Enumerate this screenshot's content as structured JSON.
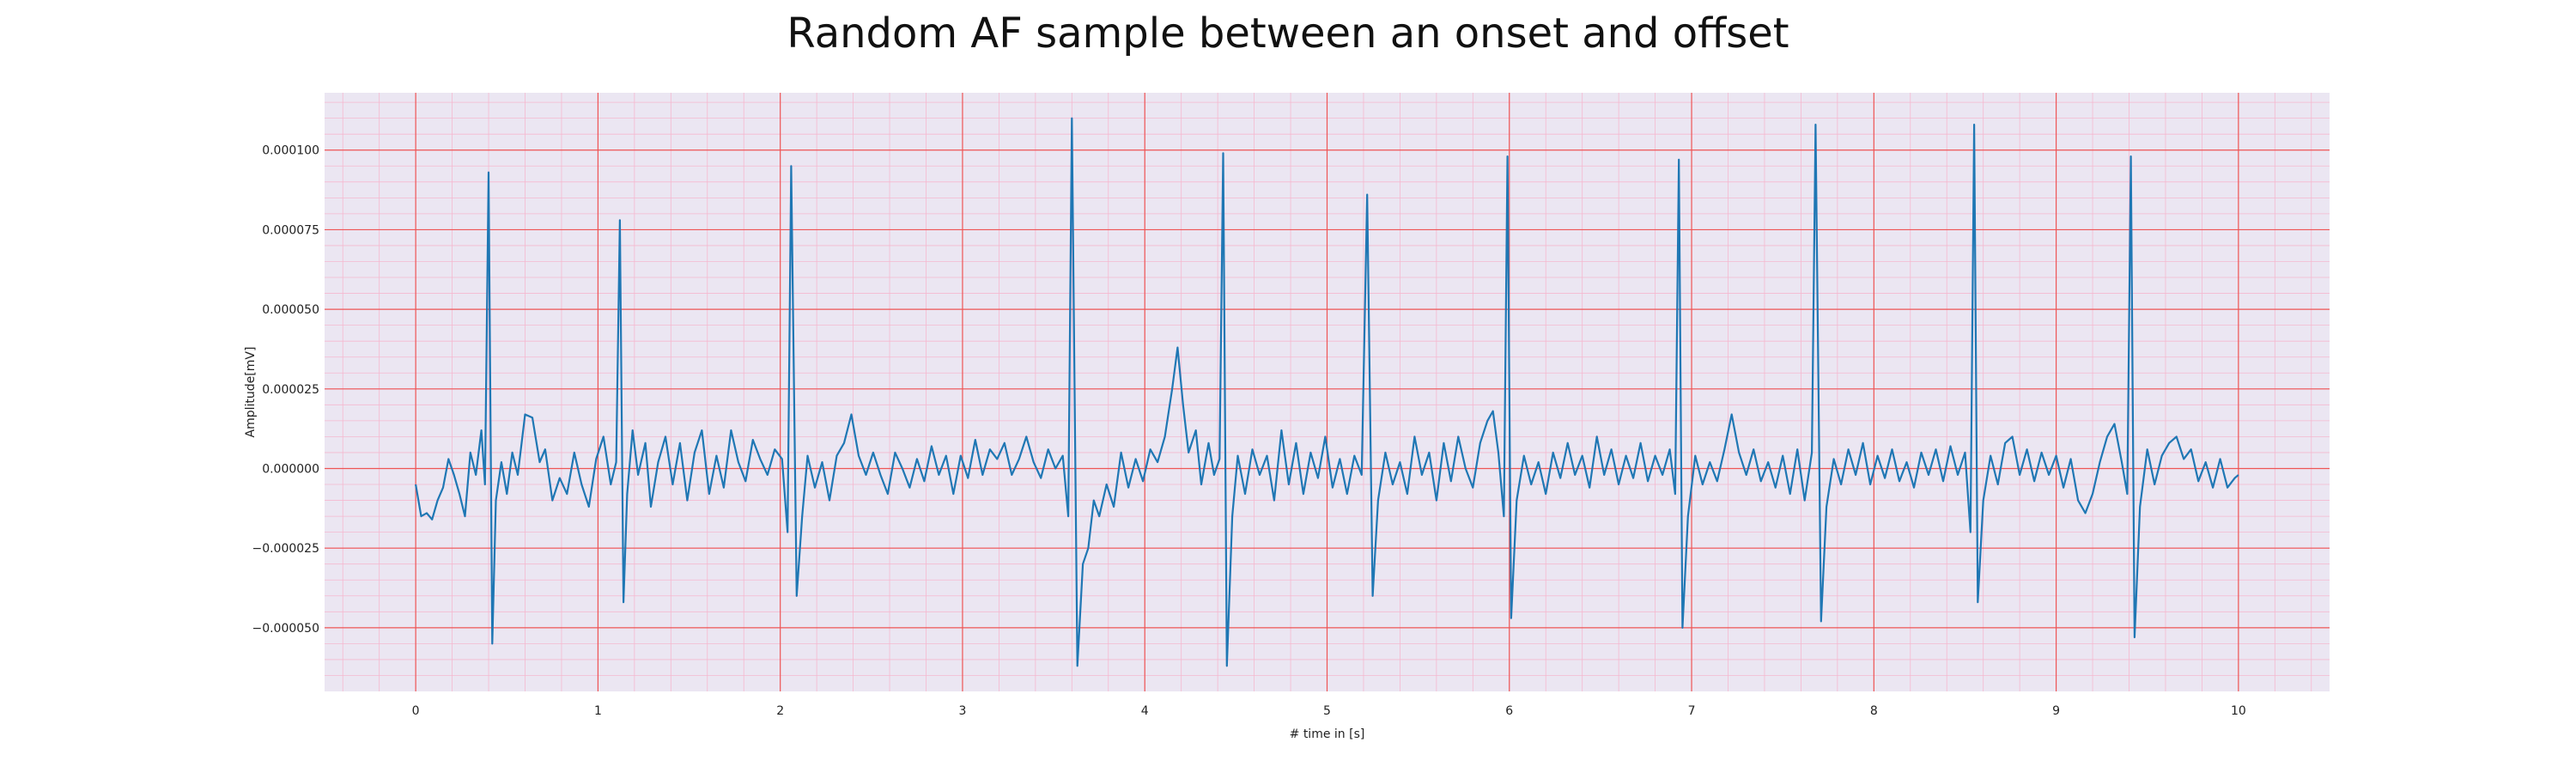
{
  "chart_data": {
    "type": "line",
    "title": "Random AF sample between an onset and offset",
    "xlabel": "# time in [s]",
    "ylabel": "Amplitude[mV]",
    "xlim": [
      -0.5,
      10.5
    ],
    "ylim": [
      -7e-05,
      0.000118
    ],
    "x_ticks": [
      0,
      1,
      2,
      3,
      4,
      5,
      6,
      7,
      8,
      9,
      10
    ],
    "x_tick_labels": [
      "0",
      "1",
      "2",
      "3",
      "4",
      "5",
      "6",
      "7",
      "8",
      "9",
      "10"
    ],
    "y_ticks": [
      -5e-05,
      -2.5e-05,
      0,
      2.5e-05,
      5e-05,
      7.5e-05,
      0.0001
    ],
    "y_tick_labels": [
      "−0.000050",
      "−0.000025",
      "0.000000",
      "0.000025",
      "0.000050",
      "0.000075",
      "0.000100"
    ],
    "grid": true,
    "colors": {
      "plot_background": "#ebe6f2",
      "major_grid": "#ee5555",
      "minor_grid": "#f5b8cf",
      "line": "#1f77b4"
    },
    "series": [
      {
        "points": [
          [
            0.0,
            -5e-06
          ],
          [
            0.03,
            -1.5e-05
          ],
          [
            0.06,
            -1.4e-05
          ],
          [
            0.09,
            -1.6e-05
          ],
          [
            0.12,
            -1e-05
          ],
          [
            0.15,
            -6e-06
          ],
          [
            0.18,
            3e-06
          ],
          [
            0.21,
            -2e-06
          ],
          [
            0.24,
            -8e-06
          ],
          [
            0.27,
            -1.5e-05
          ],
          [
            0.3,
            5e-06
          ],
          [
            0.33,
            -2e-06
          ],
          [
            0.36,
            1.2e-05
          ],
          [
            0.38,
            -5e-06
          ],
          [
            0.4,
            9.3e-05
          ],
          [
            0.42,
            -5.5e-05
          ],
          [
            0.44,
            -1e-05
          ],
          [
            0.47,
            2e-06
          ],
          [
            0.5,
            -8e-06
          ],
          [
            0.53,
            5e-06
          ],
          [
            0.56,
            -2e-06
          ],
          [
            0.6,
            1.7e-05
          ],
          [
            0.64,
            1.6e-05
          ],
          [
            0.68,
            2e-06
          ],
          [
            0.71,
            6e-06
          ],
          [
            0.75,
            -1e-05
          ],
          [
            0.79,
            -3e-06
          ],
          [
            0.83,
            -8e-06
          ],
          [
            0.87,
            5e-06
          ],
          [
            0.91,
            -5e-06
          ],
          [
            0.95,
            -1.2e-05
          ],
          [
            0.99,
            3e-06
          ],
          [
            1.03,
            1e-05
          ],
          [
            1.07,
            -5e-06
          ],
          [
            1.1,
            2e-06
          ],
          [
            1.12,
            7.8e-05
          ],
          [
            1.14,
            -4.2e-05
          ],
          [
            1.16,
            -8e-06
          ],
          [
            1.19,
            1.2e-05
          ],
          [
            1.22,
            -2e-06
          ],
          [
            1.26,
            8e-06
          ],
          [
            1.29,
            -1.2e-05
          ],
          [
            1.33,
            2e-06
          ],
          [
            1.37,
            1e-05
          ],
          [
            1.41,
            -5e-06
          ],
          [
            1.45,
            8e-06
          ],
          [
            1.49,
            -1e-05
          ],
          [
            1.53,
            5e-06
          ],
          [
            1.57,
            1.2e-05
          ],
          [
            1.61,
            -8e-06
          ],
          [
            1.65,
            4e-06
          ],
          [
            1.69,
            -6e-06
          ],
          [
            1.73,
            1.2e-05
          ],
          [
            1.77,
            2e-06
          ],
          [
            1.81,
            -4e-06
          ],
          [
            1.85,
            9e-06
          ],
          [
            1.89,
            3e-06
          ],
          [
            1.93,
            -2e-06
          ],
          [
            1.97,
            6e-06
          ],
          [
            2.01,
            3e-06
          ],
          [
            2.04,
            -2e-05
          ],
          [
            2.06,
            9.5e-05
          ],
          [
            2.09,
            -4e-05
          ],
          [
            2.12,
            -1.5e-05
          ],
          [
            2.15,
            4e-06
          ],
          [
            2.19,
            -6e-06
          ],
          [
            2.23,
            2e-06
          ],
          [
            2.27,
            -1e-05
          ],
          [
            2.31,
            4e-06
          ],
          [
            2.35,
            8e-06
          ],
          [
            2.39,
            1.7e-05
          ],
          [
            2.43,
            4e-06
          ],
          [
            2.47,
            -2e-06
          ],
          [
            2.51,
            5e-06
          ],
          [
            2.55,
            -2e-06
          ],
          [
            2.59,
            -8e-06
          ],
          [
            2.63,
            5e-06
          ],
          [
            2.67,
            0.0
          ],
          [
            2.71,
            -6e-06
          ],
          [
            2.75,
            3e-06
          ],
          [
            2.79,
            -4e-06
          ],
          [
            2.83,
            7e-06
          ],
          [
            2.87,
            -2e-06
          ],
          [
            2.91,
            4e-06
          ],
          [
            2.95,
            -8e-06
          ],
          [
            2.99,
            4e-06
          ],
          [
            3.03,
            -3e-06
          ],
          [
            3.07,
            9e-06
          ],
          [
            3.11,
            -2e-06
          ],
          [
            3.15,
            6e-06
          ],
          [
            3.19,
            3e-06
          ],
          [
            3.23,
            8e-06
          ],
          [
            3.27,
            -2e-06
          ],
          [
            3.31,
            3e-06
          ],
          [
            3.35,
            1e-05
          ],
          [
            3.39,
            2e-06
          ],
          [
            3.43,
            -3e-06
          ],
          [
            3.47,
            6e-06
          ],
          [
            3.51,
            0.0
          ],
          [
            3.55,
            4e-06
          ],
          [
            3.58,
            -1.5e-05
          ],
          [
            3.6,
            0.00011
          ],
          [
            3.63,
            -6.2e-05
          ],
          [
            3.66,
            -3e-05
          ],
          [
            3.69,
            -2.5e-05
          ],
          [
            3.72,
            -1e-05
          ],
          [
            3.75,
            -1.5e-05
          ],
          [
            3.79,
            -5e-06
          ],
          [
            3.83,
            -1.2e-05
          ],
          [
            3.87,
            5e-06
          ],
          [
            3.91,
            -6e-06
          ],
          [
            3.95,
            3e-06
          ],
          [
            3.99,
            -4e-06
          ],
          [
            4.03,
            6e-06
          ],
          [
            4.07,
            2e-06
          ],
          [
            4.11,
            1e-05
          ],
          [
            4.15,
            2.5e-05
          ],
          [
            4.18,
            3.8e-05
          ],
          [
            4.21,
            2e-05
          ],
          [
            4.24,
            5e-06
          ],
          [
            4.28,
            1.2e-05
          ],
          [
            4.31,
            -5e-06
          ],
          [
            4.35,
            8e-06
          ],
          [
            4.38,
            -2e-06
          ],
          [
            4.41,
            3e-06
          ],
          [
            4.43,
            9.9e-05
          ],
          [
            4.45,
            -6.2e-05
          ],
          [
            4.48,
            -1.5e-05
          ],
          [
            4.51,
            4e-06
          ],
          [
            4.55,
            -8e-06
          ],
          [
            4.59,
            6e-06
          ],
          [
            4.63,
            -2e-06
          ],
          [
            4.67,
            4e-06
          ],
          [
            4.71,
            -1e-05
          ],
          [
            4.75,
            1.2e-05
          ],
          [
            4.79,
            -5e-06
          ],
          [
            4.83,
            8e-06
          ],
          [
            4.87,
            -8e-06
          ],
          [
            4.91,
            5e-06
          ],
          [
            4.95,
            -3e-06
          ],
          [
            4.99,
            1e-05
          ],
          [
            5.03,
            -6e-06
          ],
          [
            5.07,
            3e-06
          ],
          [
            5.11,
            -8e-06
          ],
          [
            5.15,
            4e-06
          ],
          [
            5.19,
            -2e-06
          ],
          [
            5.22,
            8.6e-05
          ],
          [
            5.25,
            -4e-05
          ],
          [
            5.28,
            -1e-05
          ],
          [
            5.32,
            5e-06
          ],
          [
            5.36,
            -5e-06
          ],
          [
            5.4,
            2e-06
          ],
          [
            5.44,
            -8e-06
          ],
          [
            5.48,
            1e-05
          ],
          [
            5.52,
            -2e-06
          ],
          [
            5.56,
            5e-06
          ],
          [
            5.6,
            -1e-05
          ],
          [
            5.64,
            8e-06
          ],
          [
            5.68,
            -4e-06
          ],
          [
            5.72,
            1e-05
          ],
          [
            5.76,
            0.0
          ],
          [
            5.8,
            -6e-06
          ],
          [
            5.84,
            8e-06
          ],
          [
            5.88,
            1.5e-05
          ],
          [
            5.91,
            1.8e-05
          ],
          [
            5.94,
            5e-06
          ],
          [
            5.97,
            -1.5e-05
          ],
          [
            5.99,
            9.8e-05
          ],
          [
            6.01,
            -4.7e-05
          ],
          [
            6.04,
            -1e-05
          ],
          [
            6.08,
            4e-06
          ],
          [
            6.12,
            -5e-06
          ],
          [
            6.16,
            2e-06
          ],
          [
            6.2,
            -8e-06
          ],
          [
            6.24,
            5e-06
          ],
          [
            6.28,
            -3e-06
          ],
          [
            6.32,
            8e-06
          ],
          [
            6.36,
            -2e-06
          ],
          [
            6.4,
            4e-06
          ],
          [
            6.44,
            -6e-06
          ],
          [
            6.48,
            1e-05
          ],
          [
            6.52,
            -2e-06
          ],
          [
            6.56,
            6e-06
          ],
          [
            6.6,
            -5e-06
          ],
          [
            6.64,
            4e-06
          ],
          [
            6.68,
            -3e-06
          ],
          [
            6.72,
            8e-06
          ],
          [
            6.76,
            -4e-06
          ],
          [
            6.8,
            4e-06
          ],
          [
            6.84,
            -2e-06
          ],
          [
            6.88,
            6e-06
          ],
          [
            6.91,
            -8e-06
          ],
          [
            6.93,
            9.7e-05
          ],
          [
            6.95,
            -5e-05
          ],
          [
            6.98,
            -1.5e-05
          ],
          [
            7.02,
            4e-06
          ],
          [
            7.06,
            -5e-06
          ],
          [
            7.1,
            2e-06
          ],
          [
            7.14,
            -4e-06
          ],
          [
            7.18,
            6e-06
          ],
          [
            7.22,
            1.7e-05
          ],
          [
            7.26,
            5e-06
          ],
          [
            7.3,
            -2e-06
          ],
          [
            7.34,
            6e-06
          ],
          [
            7.38,
            -4e-06
          ],
          [
            7.42,
            2e-06
          ],
          [
            7.46,
            -6e-06
          ],
          [
            7.5,
            4e-06
          ],
          [
            7.54,
            -8e-06
          ],
          [
            7.58,
            6e-06
          ],
          [
            7.62,
            -1e-05
          ],
          [
            7.66,
            5e-06
          ],
          [
            7.68,
            0.000108
          ],
          [
            7.71,
            -4.8e-05
          ],
          [
            7.74,
            -1.2e-05
          ],
          [
            7.78,
            3e-06
          ],
          [
            7.82,
            -5e-06
          ],
          [
            7.86,
            6e-06
          ],
          [
            7.9,
            -2e-06
          ],
          [
            7.94,
            8e-06
          ],
          [
            7.98,
            -5e-06
          ],
          [
            8.02,
            4e-06
          ],
          [
            8.06,
            -3e-06
          ],
          [
            8.1,
            6e-06
          ],
          [
            8.14,
            -4e-06
          ],
          [
            8.18,
            2e-06
          ],
          [
            8.22,
            -6e-06
          ],
          [
            8.26,
            5e-06
          ],
          [
            8.3,
            -2e-06
          ],
          [
            8.34,
            6e-06
          ],
          [
            8.38,
            -4e-06
          ],
          [
            8.42,
            7e-06
          ],
          [
            8.46,
            -2e-06
          ],
          [
            8.5,
            5e-06
          ],
          [
            8.53,
            -2e-05
          ],
          [
            8.55,
            0.000108
          ],
          [
            8.57,
            -4.2e-05
          ],
          [
            8.6,
            -1e-05
          ],
          [
            8.64,
            4e-06
          ],
          [
            8.68,
            -5e-06
          ],
          [
            8.72,
            8e-06
          ],
          [
            8.76,
            1e-05
          ],
          [
            8.8,
            -2e-06
          ],
          [
            8.84,
            6e-06
          ],
          [
            8.88,
            -4e-06
          ],
          [
            8.92,
            5e-06
          ],
          [
            8.96,
            -2e-06
          ],
          [
            9.0,
            4e-06
          ],
          [
            9.04,
            -6e-06
          ],
          [
            9.08,
            3e-06
          ],
          [
            9.12,
            -1e-05
          ],
          [
            9.16,
            -1.4e-05
          ],
          [
            9.2,
            -8e-06
          ],
          [
            9.24,
            2e-06
          ],
          [
            9.28,
            1e-05
          ],
          [
            9.32,
            1.4e-05
          ],
          [
            9.36,
            2e-06
          ],
          [
            9.39,
            -8e-06
          ],
          [
            9.41,
            9.8e-05
          ],
          [
            9.43,
            -5.3e-05
          ],
          [
            9.46,
            -1.2e-05
          ],
          [
            9.5,
            6e-06
          ],
          [
            9.54,
            -5e-06
          ],
          [
            9.58,
            4e-06
          ],
          [
            9.62,
            8e-06
          ],
          [
            9.66,
            1e-05
          ],
          [
            9.7,
            3e-06
          ],
          [
            9.74,
            6e-06
          ],
          [
            9.78,
            -4e-06
          ],
          [
            9.82,
            2e-06
          ],
          [
            9.86,
            -6e-06
          ],
          [
            9.9,
            3e-06
          ],
          [
            9.94,
            -6e-06
          ],
          [
            9.98,
            -3e-06
          ],
          [
            10.0,
            -2e-06
          ]
        ]
      }
    ]
  }
}
